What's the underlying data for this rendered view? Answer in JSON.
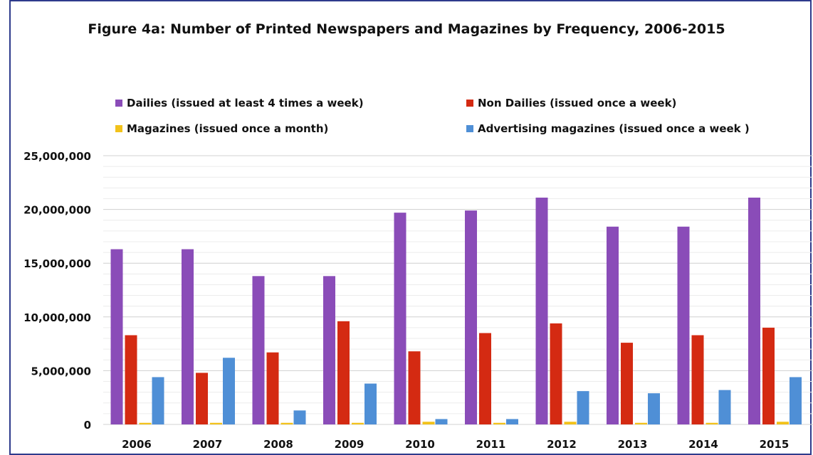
{
  "chart_data": {
    "type": "bar",
    "title": "Figure 4a: Number of Printed Newspapers and Magazines by Frequency, 2006-2015",
    "xlabel": "",
    "ylabel": "",
    "categories": [
      "2006",
      "2007",
      "2008",
      "2009",
      "2010",
      "2011",
      "2012",
      "2013",
      "2014",
      "2015"
    ],
    "series": [
      {
        "name": "Dailies (issued at least 4 times a week)",
        "color": "#8a4cb8",
        "values": [
          16300000,
          16300000,
          13800000,
          13800000,
          19700000,
          19900000,
          21100000,
          18400000,
          18400000,
          21100000
        ]
      },
      {
        "name": "Non Dailies (issued once a week)",
        "color": "#d42a12",
        "values": [
          8300000,
          4800000,
          6700000,
          9600000,
          6800000,
          8500000,
          9400000,
          7600000,
          8300000,
          9000000
        ]
      },
      {
        "name": "Magazines (issued  once  a  month)",
        "color": "#f2c21b",
        "values": [
          150000,
          150000,
          150000,
          150000,
          250000,
          150000,
          250000,
          150000,
          150000,
          250000
        ]
      },
      {
        "name": "Advertising magazines (issued  once  a  week )",
        "color": "#4f8fd6",
        "values": [
          4400000,
          6200000,
          1300000,
          3800000,
          500000,
          500000,
          3100000,
          2900000,
          3200000,
          4400000
        ]
      }
    ],
    "ylim": [
      0,
      25000000
    ],
    "yticks": [
      "0",
      "5,000,000",
      "10,000,000",
      "15,000,000",
      "20,000,000",
      "25,000,000"
    ],
    "ytick_values": [
      0,
      5000000,
      10000000,
      15000000,
      20000000,
      25000000
    ],
    "minor_gridlines": true,
    "legend_placement": "top"
  }
}
